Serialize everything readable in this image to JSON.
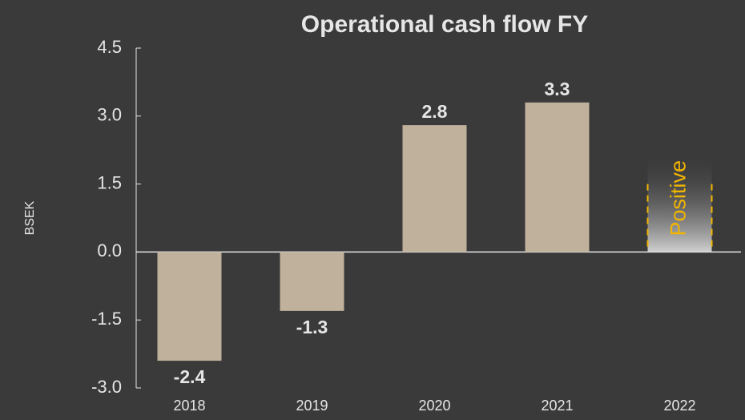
{
  "chart_data": {
    "type": "bar",
    "title": "Operational cash flow FY",
    "y_label": "BSEK",
    "categories": [
      "2018",
      "2019",
      "2020",
      "2021",
      "2022"
    ],
    "values": [
      -2.4,
      -1.3,
      2.8,
      3.3,
      null
    ],
    "color": "#bfb19b",
    "annotation": "Positive",
    "annotation_color": "#f2b500",
    "ylim": [
      -3,
      4.5
    ],
    "yticks": [
      4.5,
      {
        "value": 3,
        "label": "3.0"
      },
      -1.5,
      {
        "value": 1.5,
        "label": "1.5"
      },
      {
        "value": 0,
        "label": "0.0"
      },
      {
        "value": -3,
        "label": "-3.0"
      }
    ],
    "grid": false
  }
}
